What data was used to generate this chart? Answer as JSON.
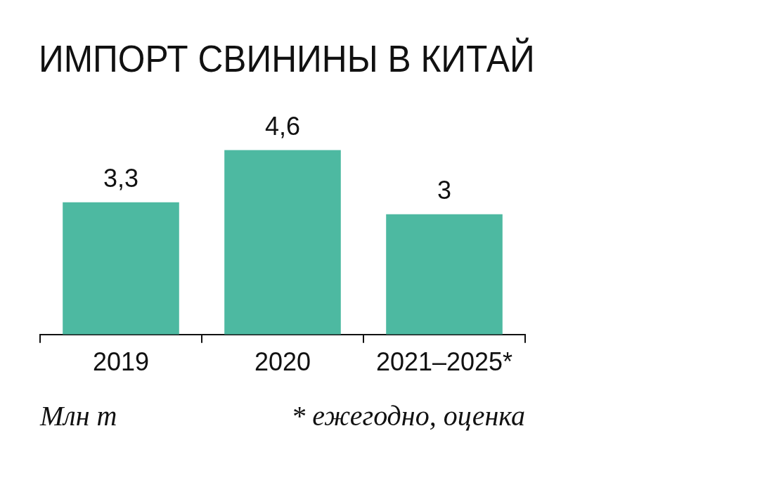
{
  "chart_data": {
    "type": "bar",
    "title": "ИМПОРТ СВИНИНЫ В КИТАЙ",
    "categories": [
      "2019",
      "2020",
      "2021–2025*"
    ],
    "values": [
      3.3,
      4.6,
      3
    ],
    "color": "#4db9a1",
    "value_labels": [
      "3,3",
      "4,6",
      "3"
    ],
    "grid": false,
    "legend": false,
    "annotations": [
      "Млн т",
      "* ежегодно, оценка"
    ]
  }
}
